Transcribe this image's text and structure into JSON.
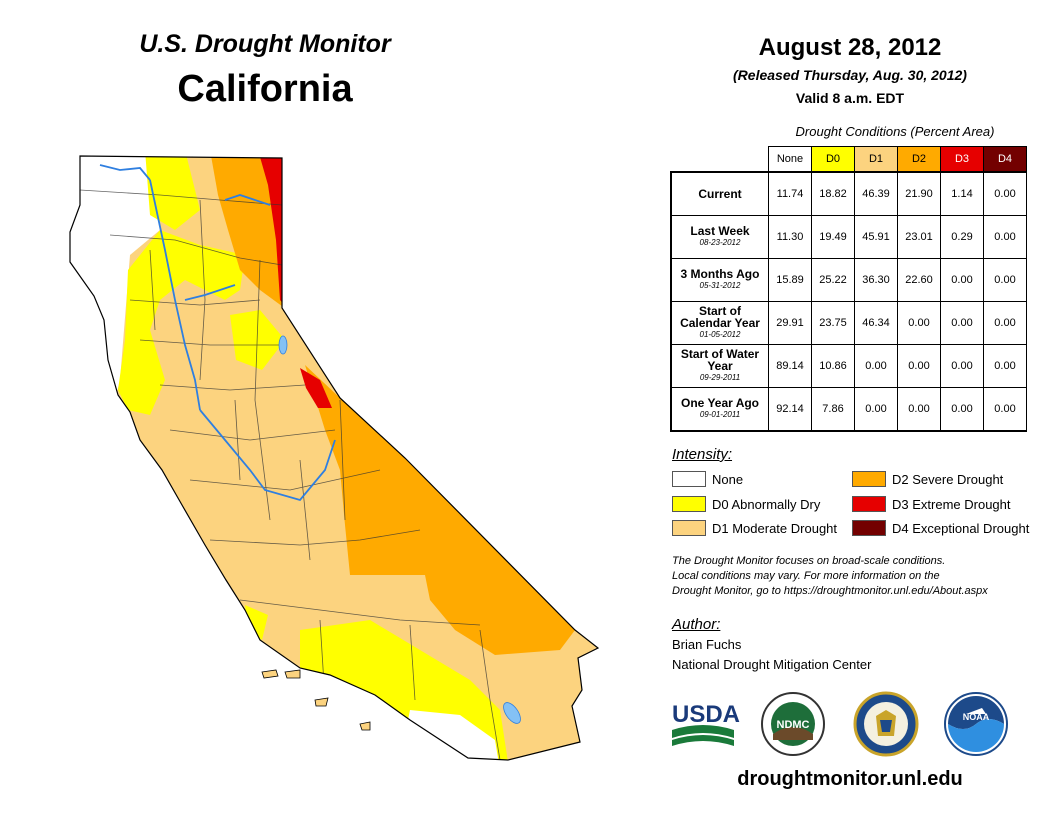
{
  "header": {
    "series_title": "U.S. Drought Monitor",
    "state": "California",
    "date": "August 28, 2012",
    "released": "(Released Thursday, Aug. 30, 2012)",
    "valid": "Valid 8 a.m. EDT"
  },
  "table": {
    "caption": "Drought Conditions (Percent Area)",
    "columns": [
      "None",
      "D0",
      "D1",
      "D2",
      "D3",
      "D4"
    ],
    "rows": [
      {
        "label": "Current",
        "date": "",
        "values": [
          "11.74",
          "18.82",
          "46.39",
          "21.90",
          "1.14",
          "0.00"
        ]
      },
      {
        "label": "Last Week",
        "date": "08-23-2012",
        "values": [
          "11.30",
          "19.49",
          "45.91",
          "23.01",
          "0.29",
          "0.00"
        ]
      },
      {
        "label": "3 Months Ago",
        "date": "05-31-2012",
        "values": [
          "15.89",
          "25.22",
          "36.30",
          "22.60",
          "0.00",
          "0.00"
        ]
      },
      {
        "label": "Start of Calendar Year",
        "date": "01-05-2012",
        "values": [
          "29.91",
          "23.75",
          "46.34",
          "0.00",
          "0.00",
          "0.00"
        ]
      },
      {
        "label": "Start of Water Year",
        "date": "09-29-2011",
        "values": [
          "89.14",
          "10.86",
          "0.00",
          "0.00",
          "0.00",
          "0.00"
        ]
      },
      {
        "label": "One Year Ago",
        "date": "09-01-2011",
        "values": [
          "92.14",
          "7.86",
          "0.00",
          "0.00",
          "0.00",
          "0.00"
        ]
      }
    ]
  },
  "legend": {
    "title": "Intensity:",
    "items": [
      {
        "label": "None",
        "color": "#ffffff"
      },
      {
        "label": "D0 Abnormally Dry",
        "color": "#ffff00"
      },
      {
        "label": "D1 Moderate Drought",
        "color": "#fcd37f"
      },
      {
        "label": "D2 Severe Drought",
        "color": "#ffaa00"
      },
      {
        "label": "D3 Extreme Drought",
        "color": "#e60000"
      },
      {
        "label": "D4 Exceptional Drought",
        "color": "#730000"
      }
    ]
  },
  "note": [
    "The Drought Monitor focuses on broad-scale conditions.",
    "Local conditions may vary. For more information on the",
    "Drought Monitor, go to https://droughtmonitor.unl.edu/About.aspx"
  ],
  "author": {
    "title": "Author:",
    "name": "Brian Fuchs",
    "org": "National Drought Mitigation Center"
  },
  "logos": {
    "usda": "USDA",
    "ndmc": "NDMC",
    "noaa": "NOAA"
  },
  "website": "droughtmonitor.unl.edu"
}
